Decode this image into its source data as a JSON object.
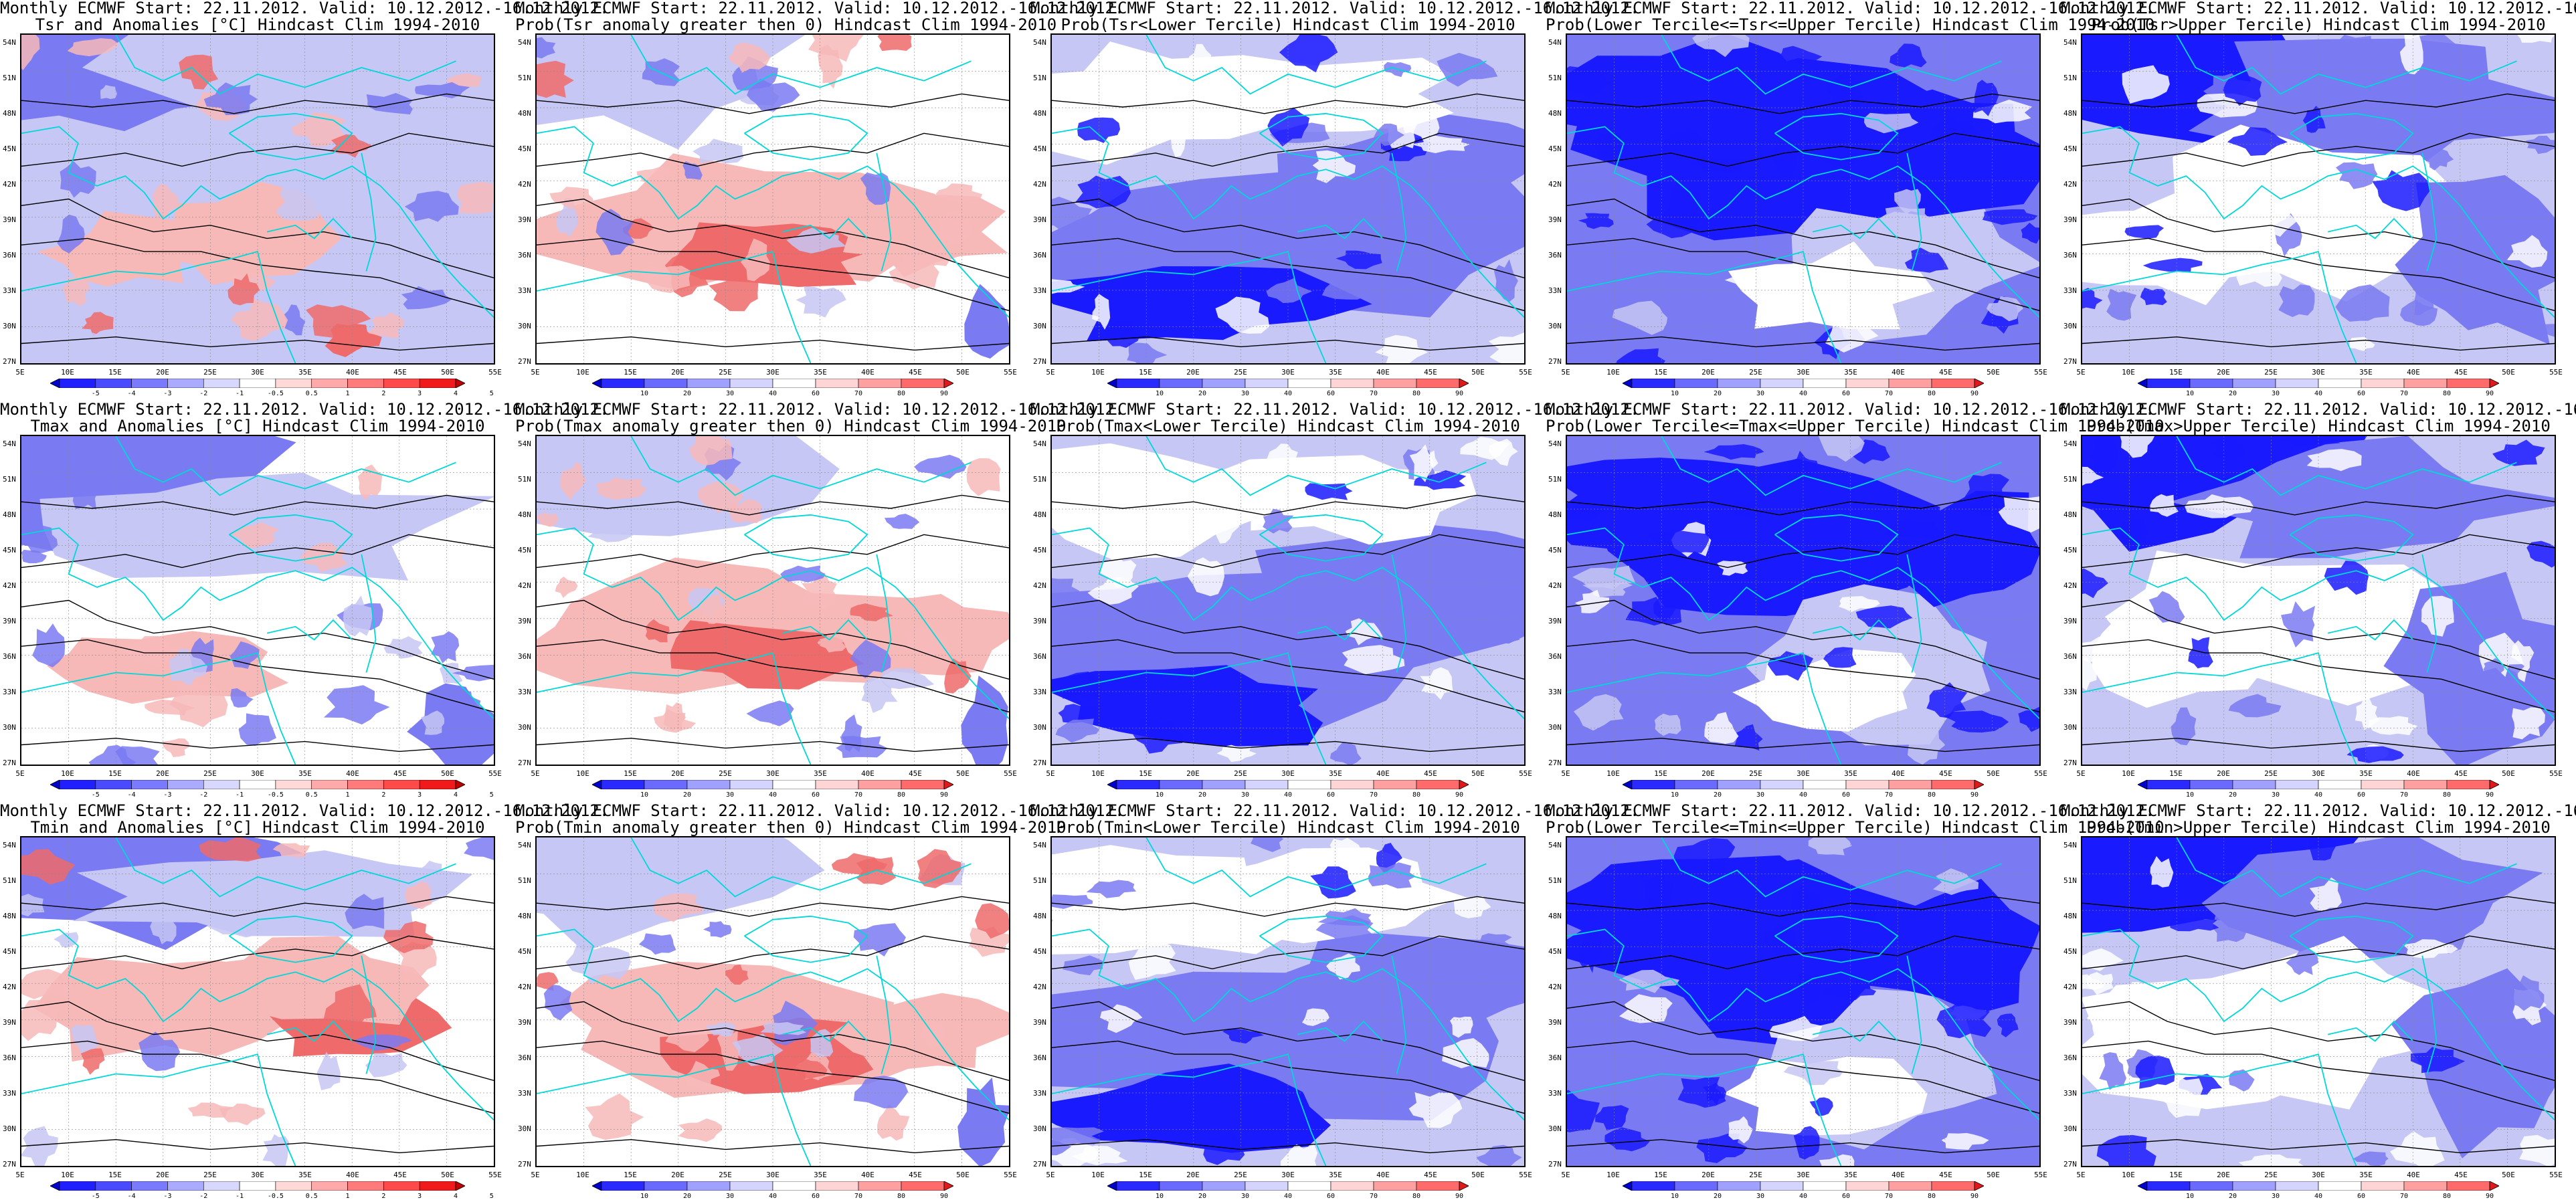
{
  "figure": {
    "title_line1": "Monthly ECMWF Start: 22.11.2012. Valid: 10.12.2012.-16.12.2012.",
    "lat_labels": [
      "54N",
      "51N",
      "48N",
      "45N",
      "42N",
      "39N",
      "36N",
      "33N",
      "30N",
      "27N"
    ],
    "lon_labels": [
      "5E",
      "10E",
      "15E",
      "20E",
      "25E",
      "30E",
      "35E",
      "40E",
      "45E",
      "50E",
      "55E"
    ],
    "colors": {
      "land_border": "#00d8d8",
      "contour": "#000000",
      "blue_strong": "#1a1aff",
      "blue_mid": "#7a7af2",
      "blue_light": "#c7c7f5",
      "red_light": "#f7b8b8",
      "red_mid": "#ef6a6a",
      "red_strong": "#d61a1a"
    },
    "colorbars": {
      "anomaly": {
        "labels": [
          "-5",
          "-4",
          "-3",
          "-2",
          "-1",
          "-0.5",
          "0.5",
          "1",
          "2",
          "3",
          "4",
          "5"
        ],
        "colors": [
          "#0000d0",
          "#2020ff",
          "#4a4aff",
          "#7a7aff",
          "#aaaaff",
          "#d8d8ff",
          "#ffffff",
          "#ffd8d8",
          "#ffaaaa",
          "#ff7a7a",
          "#ff4a4a",
          "#f01a1a",
          "#c00000"
        ]
      },
      "probability": {
        "labels": [
          "10",
          "20",
          "30",
          "40",
          "60",
          "70",
          "80",
          "90"
        ],
        "colors": [
          "#0000d0",
          "#2a2aff",
          "#6a6aff",
          "#a0a0ff",
          "#d4d4ff",
          "#ffffff",
          "#ffd4d4",
          "#ffa0a0",
          "#ff6a6a",
          "#e01a1a"
        ]
      }
    },
    "rows": [
      {
        "variable": "Tsr",
        "panels": [
          {
            "title_line2": "Tsr and Anomalies [°C] Hindcast Clim 1994-2010",
            "bar": "anomaly",
            "theme": "anom-mixed"
          },
          {
            "title_line2": "Prob(Tsr anomaly greater then 0) Hindcast Clim 1994-2010",
            "bar": "probability",
            "theme": "prob-red"
          },
          {
            "title_line2": "Prob(Tsr<Lower Tercile) Hindcast Clim 1994-2010",
            "bar": "probability",
            "theme": "prob-blue"
          },
          {
            "title_line2": "Prob(Lower Tercile<=Tsr<=Upper Tercile) Hindcast Clim 1994-2010",
            "bar": "probability",
            "theme": "prob-deep"
          },
          {
            "title_line2": "Prob(Tsr>Upper Tercile) Hindcast Clim 1994-2010",
            "bar": "probability",
            "theme": "prob-upper"
          }
        ]
      },
      {
        "variable": "Tmax",
        "panels": [
          {
            "title_line2": "Tmax and Anomalies [°C] Hindcast Clim 1994-2010",
            "bar": "anomaly",
            "theme": "anom-blue"
          },
          {
            "title_line2": "Prob(Tmax anomaly greater then 0) Hindcast Clim 1994-2010",
            "bar": "probability",
            "theme": "prob-red"
          },
          {
            "title_line2": "Prob(Tmax<Lower Tercile) Hindcast Clim 1994-2010",
            "bar": "probability",
            "theme": "prob-blue"
          },
          {
            "title_line2": "Prob(Lower Tercile<=Tmax<=Upper Tercile) Hindcast Clim 1994-2010",
            "bar": "probability",
            "theme": "prob-deep"
          },
          {
            "title_line2": "Prob(Tmax>Upper Tercile) Hindcast Clim 1994-2010",
            "bar": "probability",
            "theme": "prob-upper"
          }
        ]
      },
      {
        "variable": "Tmin",
        "panels": [
          {
            "title_line2": "Tmin and Anomalies [°C] Hindcast Clim 1994-2010",
            "bar": "anomaly",
            "theme": "anom-red"
          },
          {
            "title_line2": "Prob(Tmin anomaly greater then 0) Hindcast Clim 1994-2010",
            "bar": "probability",
            "theme": "prob-red"
          },
          {
            "title_line2": "Prob(Tmin<Lower Tercile) Hindcast Clim 1994-2010",
            "bar": "probability",
            "theme": "prob-blue"
          },
          {
            "title_line2": "Prob(Lower Tercile<=Tmin<=Upper Tercile) Hindcast Clim 1994-2010",
            "bar": "probability",
            "theme": "prob-deep"
          },
          {
            "title_line2": "Prob(Tmin>Upper Tercile) Hindcast Clim 1994-2010",
            "bar": "probability",
            "theme": "prob-upper"
          }
        ]
      }
    ]
  }
}
